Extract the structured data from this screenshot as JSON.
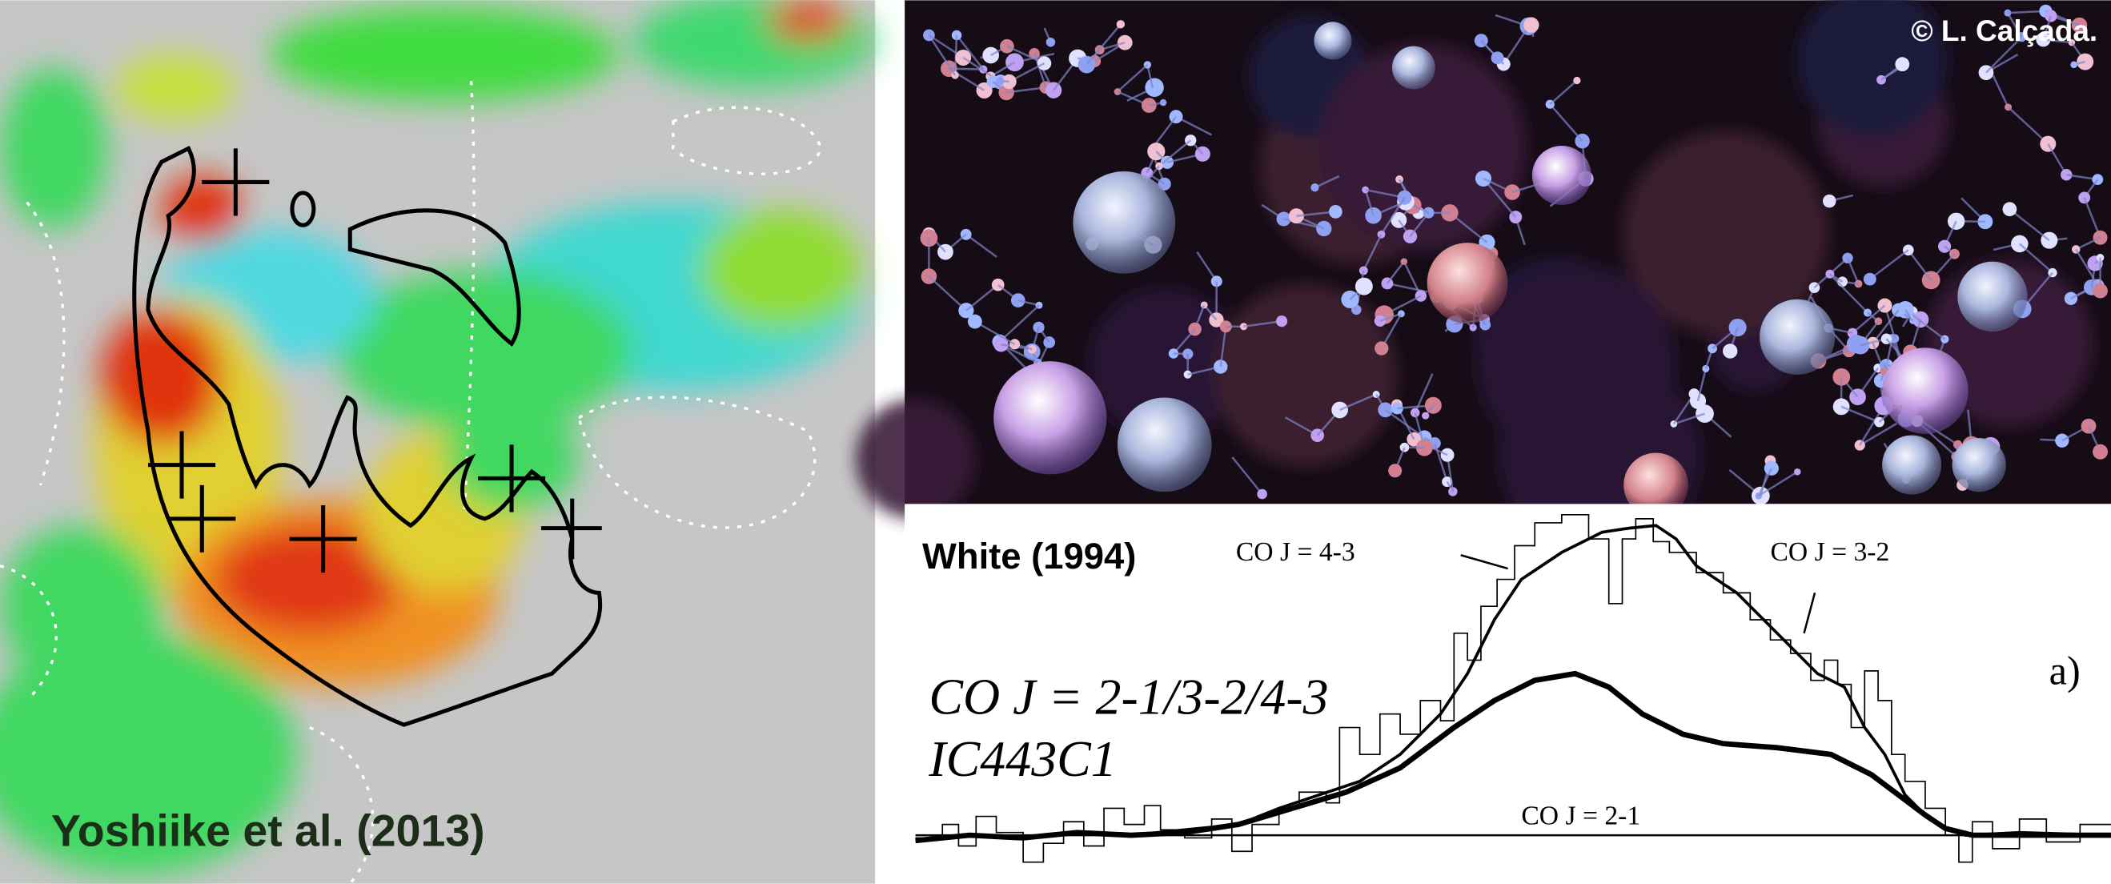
{
  "map": {
    "credit": "Yoshiike et al. (2013)"
  },
  "image": {
    "credit": "© L. Calçada."
  },
  "spectrum": {
    "reference": "White (1994)",
    "labels": [
      "CO J = 4-3",
      "CO J = 3-2",
      "CO J = 2-1"
    ],
    "title": [
      "CO J = 2-1/3-2/4-3",
      "IC443C1"
    ],
    "panel": "a)"
  }
}
